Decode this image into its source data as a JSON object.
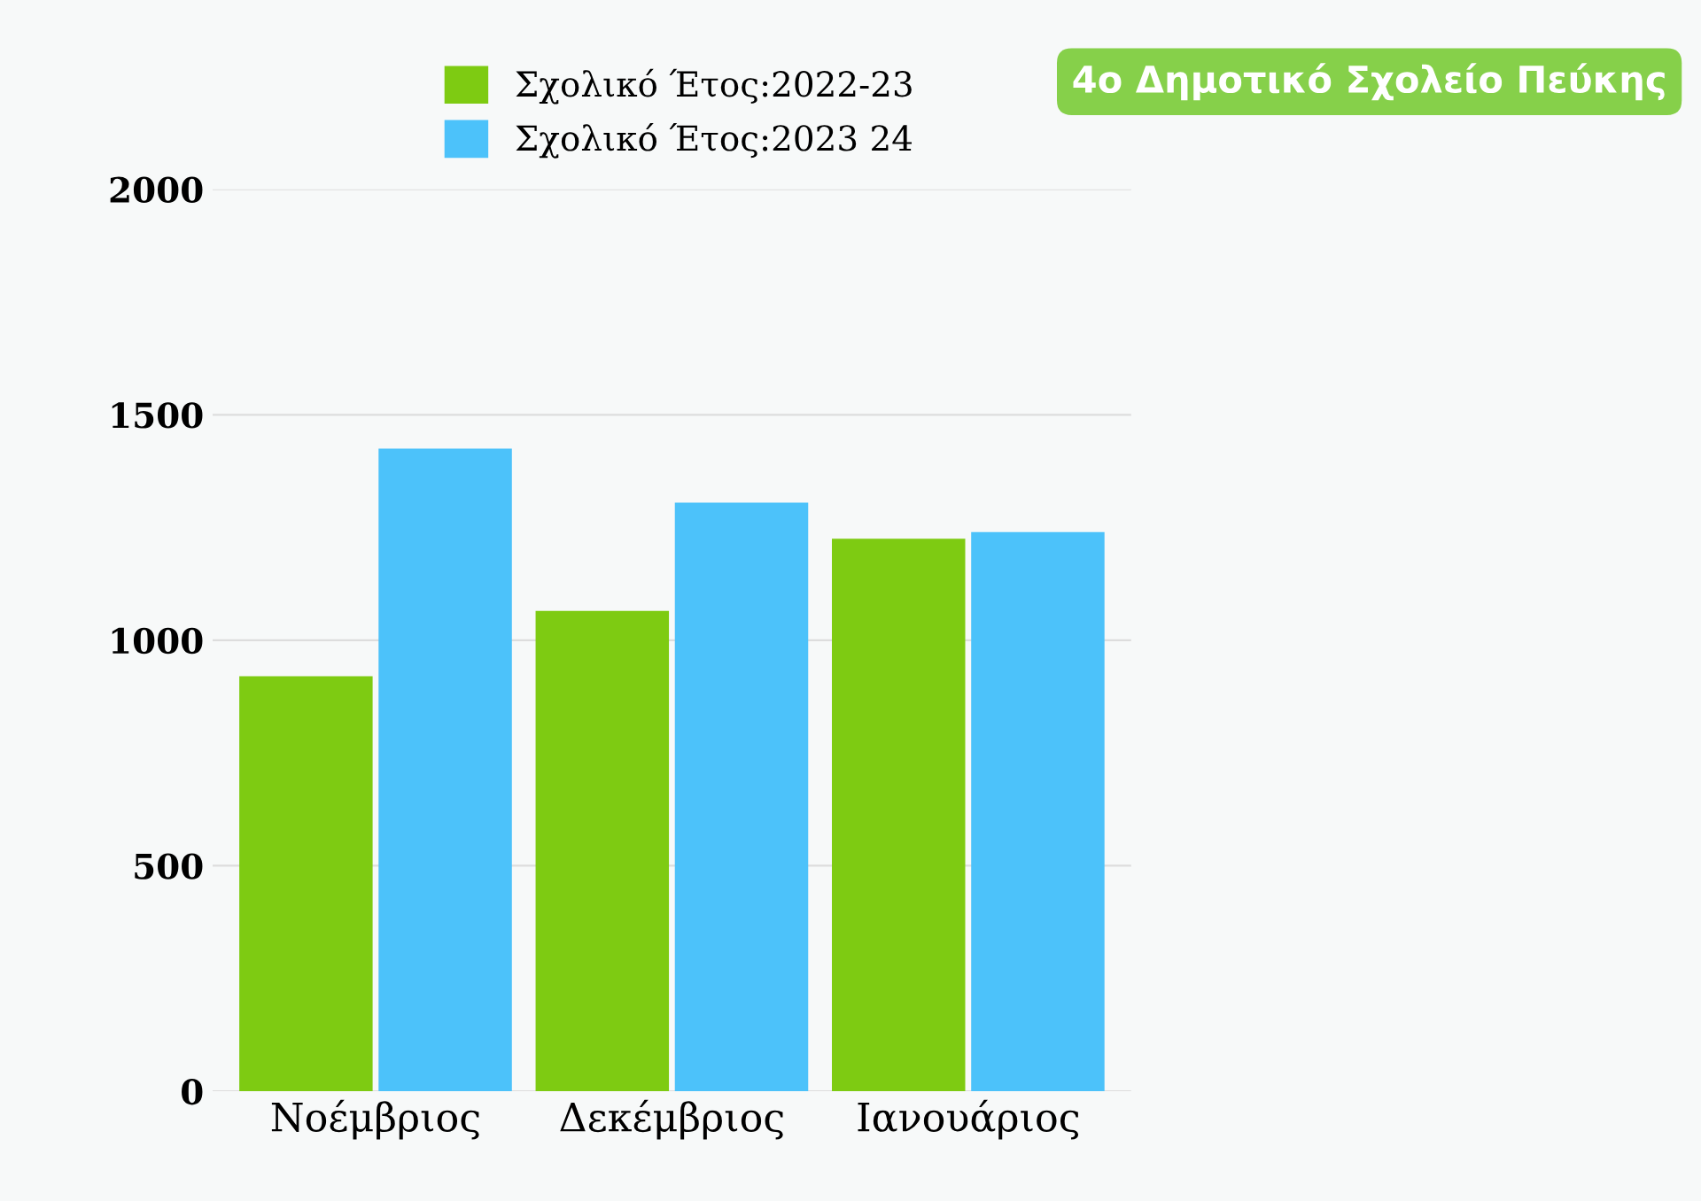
{
  "chart_data": {
    "type": "bar",
    "title": "4ο Δημοτικό Σχολείο Πεύκης",
    "categories": [
      "Νοέμβριος",
      "Δεκέμβριος",
      "Ιανουάριος"
    ],
    "series": [
      {
        "name": "Σχολικό Έτος:2022-23",
        "color": "#7ecb12",
        "values": [
          920,
          1065,
          1225
        ]
      },
      {
        "name": "Σχολικό Έτος:2023 24",
        "color": "#4cc2fa",
        "values": [
          1425,
          1305,
          1240
        ]
      }
    ],
    "ylim": [
      0,
      2000
    ],
    "yticks": [
      0,
      500,
      1000,
      1500,
      2000
    ],
    "grid": "y",
    "legend": "top"
  }
}
